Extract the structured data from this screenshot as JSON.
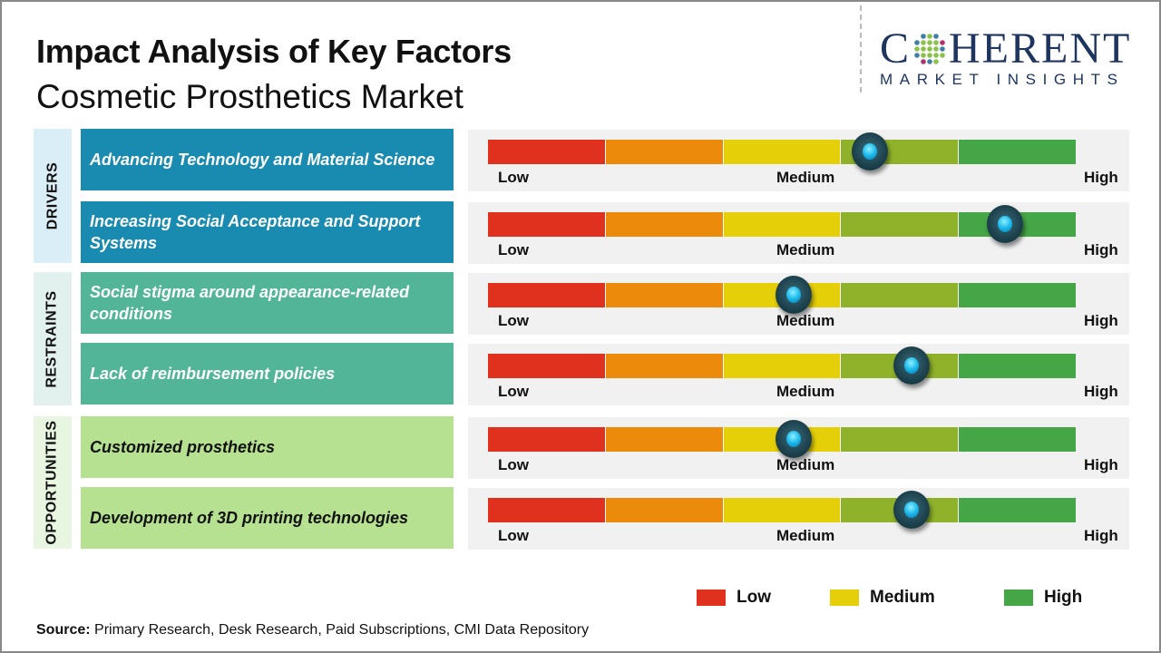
{
  "header": {
    "title": "Impact Analysis of Key Factors",
    "subtitle": "Cosmetic Prosthetics Market"
  },
  "logo": {
    "line1_pre": "C",
    "line1_post": "HERENT",
    "line2": "MARKET INSIGHTS",
    "color": "#1e3560"
  },
  "scale": {
    "low": "Low",
    "medium": "Medium",
    "high": "High",
    "segment_colors": [
      "#e0301e",
      "#ec8a0b",
      "#e5cf08",
      "#8fb22a",
      "#45a646"
    ]
  },
  "categories": [
    {
      "label": "DRIVERS",
      "bg": "#daeef8",
      "factor_bg": "#1a8bb0",
      "text_color": "#ffffff"
    },
    {
      "label": "RESTRAINTS",
      "bg": "#e2f0ee",
      "factor_bg": "#52b597",
      "text_color": "#ffffff"
    },
    {
      "label": "OPPORTUNITIES",
      "bg": "#e8f5e0",
      "factor_bg": "#b5e190",
      "text_color": "#111111"
    }
  ],
  "chart_data": {
    "type": "table",
    "title": "Impact Analysis of Key Factors - Cosmetic Prosthetics Market",
    "scale_labels": [
      "Low",
      "Medium",
      "High"
    ],
    "value_range": [
      0,
      1
    ],
    "rows": [
      {
        "category": "DRIVERS",
        "factor": "Advancing Technology and Material Science",
        "impact": 0.65
      },
      {
        "category": "DRIVERS",
        "factor": "Increasing Social Acceptance and Support Systems",
        "impact": 0.88
      },
      {
        "category": "RESTRAINTS",
        "factor": "Social stigma around appearance-related conditions",
        "impact": 0.52
      },
      {
        "category": "RESTRAINTS",
        "factor": "Lack of reimbursement policies",
        "impact": 0.72
      },
      {
        "category": "OPPORTUNITIES",
        "factor": "Customized prosthetics",
        "impact": 0.52
      },
      {
        "category": "OPPORTUNITIES",
        "factor": "Development of 3D printing technologies",
        "impact": 0.72
      }
    ],
    "legend": [
      {
        "label": "Low",
        "color": "#e0301e"
      },
      {
        "label": "Medium",
        "color": "#e5cf08"
      },
      {
        "label": "High",
        "color": "#45a646"
      }
    ],
    "legend_position": "bottom-right"
  },
  "footer": {
    "source_label": "Source:",
    "source_text": " Primary Research, Desk Research, Paid Subscriptions, CMI Data Repository"
  }
}
